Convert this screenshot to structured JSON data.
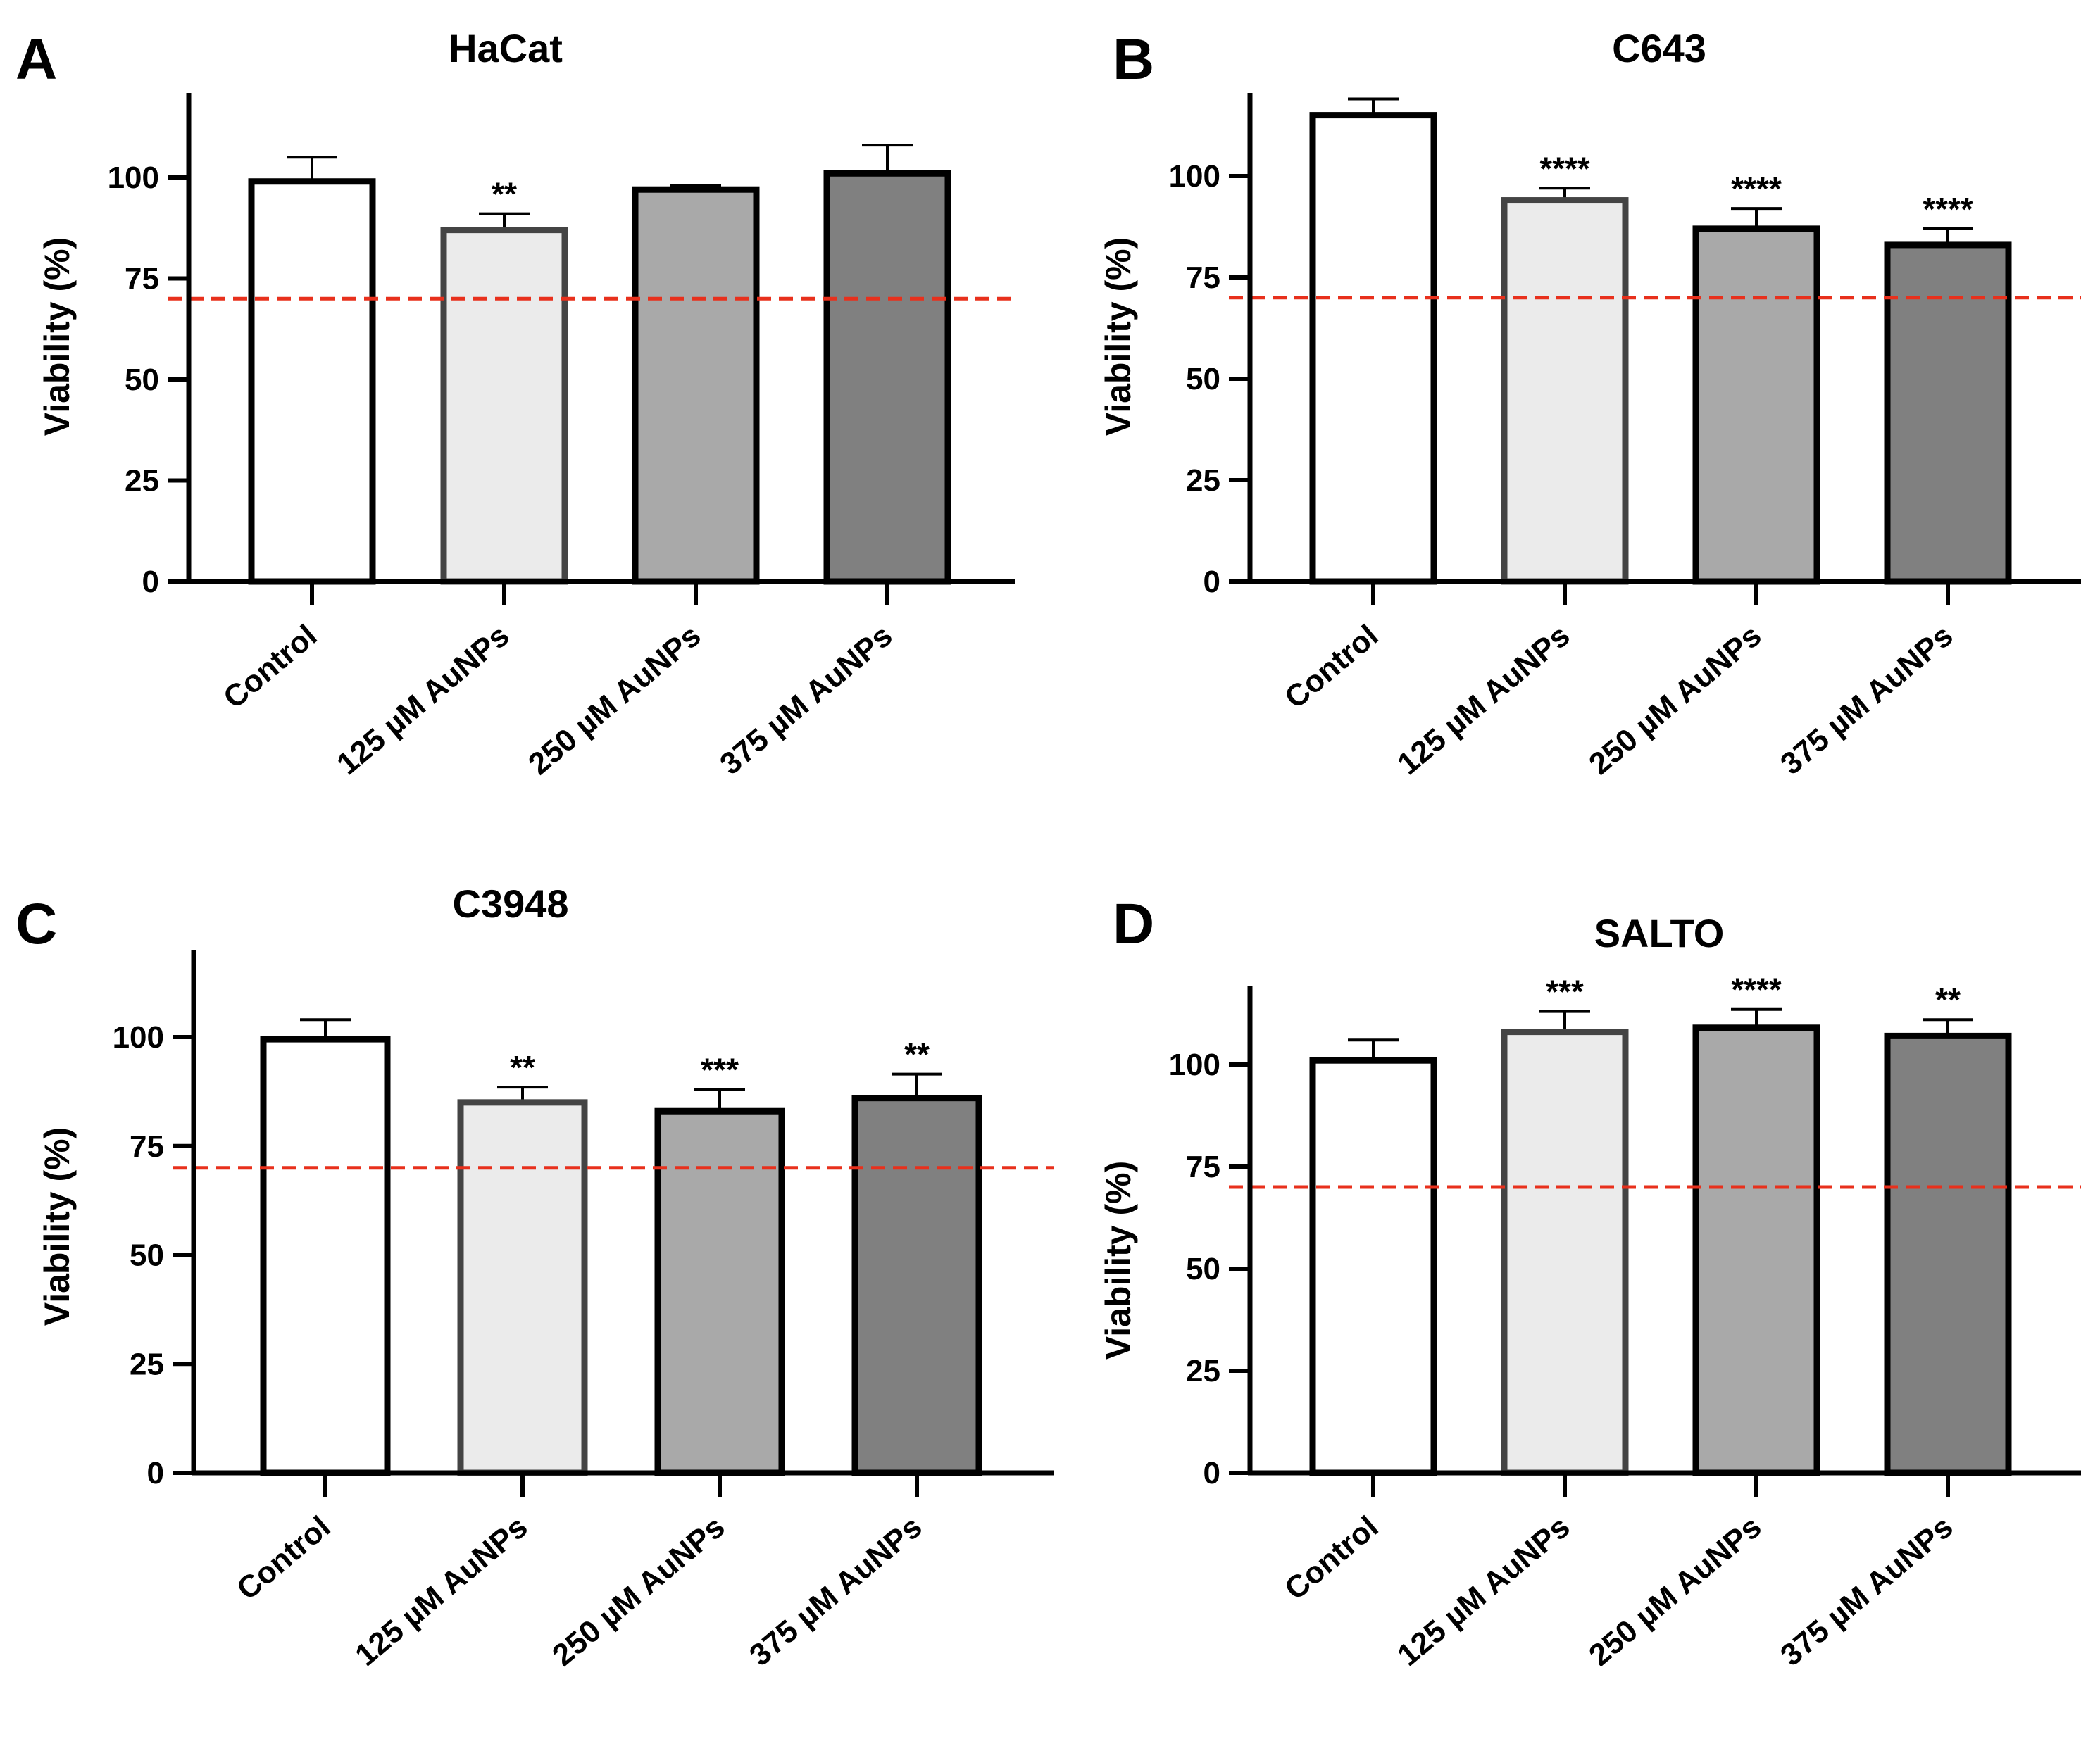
{
  "chart_data": [
    {
      "panel": "A",
      "type": "bar",
      "title": "HaCat",
      "ylabel": "Viability (%)",
      "xlabel": "",
      "categories": [
        "Control",
        "125 µM AuNPs",
        "250 µM AuNPs",
        "375 µM AuNPs"
      ],
      "values": [
        99,
        87,
        97,
        101
      ],
      "errors": [
        6,
        4,
        1,
        7
      ],
      "significance": [
        "",
        "**",
        "",
        ""
      ],
      "ylim": [
        0,
        120
      ],
      "yticks": [
        "0",
        "25",
        "50",
        "75",
        "100"
      ],
      "threshold": 70,
      "fills": [
        "#ffffff",
        "#ebebeb",
        "#a9a9a9",
        "#808080"
      ],
      "strokes": [
        "#000000",
        "#444444",
        "#000000",
        "#000000"
      ]
    },
    {
      "panel": "B",
      "type": "bar",
      "title": "C643",
      "ylabel": "Viability (%)",
      "xlabel": "",
      "categories": [
        "Control",
        "125 µM AuNPs",
        "250 µM AuNPs",
        "375 µM AuNPs"
      ],
      "values": [
        115,
        94,
        87,
        83
      ],
      "errors": [
        4,
        3,
        5,
        4
      ],
      "significance": [
        "",
        "****",
        "****",
        "****"
      ],
      "ylim": [
        0,
        120
      ],
      "yticks": [
        "0",
        "25",
        "50",
        "75",
        "100"
      ],
      "threshold": 70,
      "fills": [
        "#ffffff",
        "#ebebeb",
        "#a9a9a9",
        "#808080"
      ],
      "strokes": [
        "#000000",
        "#444444",
        "#000000",
        "#000000"
      ]
    },
    {
      "panel": "C",
      "type": "bar",
      "title": "C3948",
      "ylabel": "Viability (%)",
      "xlabel": "",
      "categories": [
        "Control",
        "125 µM AuNPs",
        "250 µM AuNPs",
        "375 µM AuNPs"
      ],
      "values": [
        99.5,
        85,
        83,
        86
      ],
      "errors": [
        4.5,
        3.5,
        5,
        5.5
      ],
      "significance": [
        "",
        "**",
        "***",
        "**"
      ],
      "ylim": [
        0,
        120
      ],
      "yticks": [
        "0",
        "25",
        "50",
        "75",
        "100"
      ],
      "threshold": 70,
      "fills": [
        "#ffffff",
        "#ebebeb",
        "#a9a9a9",
        "#808080"
      ],
      "strokes": [
        "#000000",
        "#444444",
        "#000000",
        "#000000"
      ]
    },
    {
      "panel": "D",
      "type": "bar",
      "title": "SALTO",
      "ylabel": "Viability (%)",
      "xlabel": "",
      "categories": [
        "Control",
        "125 µM AuNPs",
        "250 µM AuNPs",
        "375 µM AuNPs"
      ],
      "values": [
        101,
        108,
        109,
        107
      ],
      "errors": [
        5,
        5,
        4.5,
        4
      ],
      "significance": [
        "",
        "***",
        "****",
        "**"
      ],
      "ylim": [
        0,
        120
      ],
      "yticks": [
        "0",
        "25",
        "50",
        "75",
        "100"
      ],
      "threshold": 70,
      "fills": [
        "#ffffff",
        "#ebebeb",
        "#a9a9a9",
        "#808080"
      ],
      "strokes": [
        "#000000",
        "#444444",
        "#000000",
        "#000000"
      ]
    }
  ],
  "colors": {
    "axis": "#000000",
    "threshold": "#e8301c"
  }
}
